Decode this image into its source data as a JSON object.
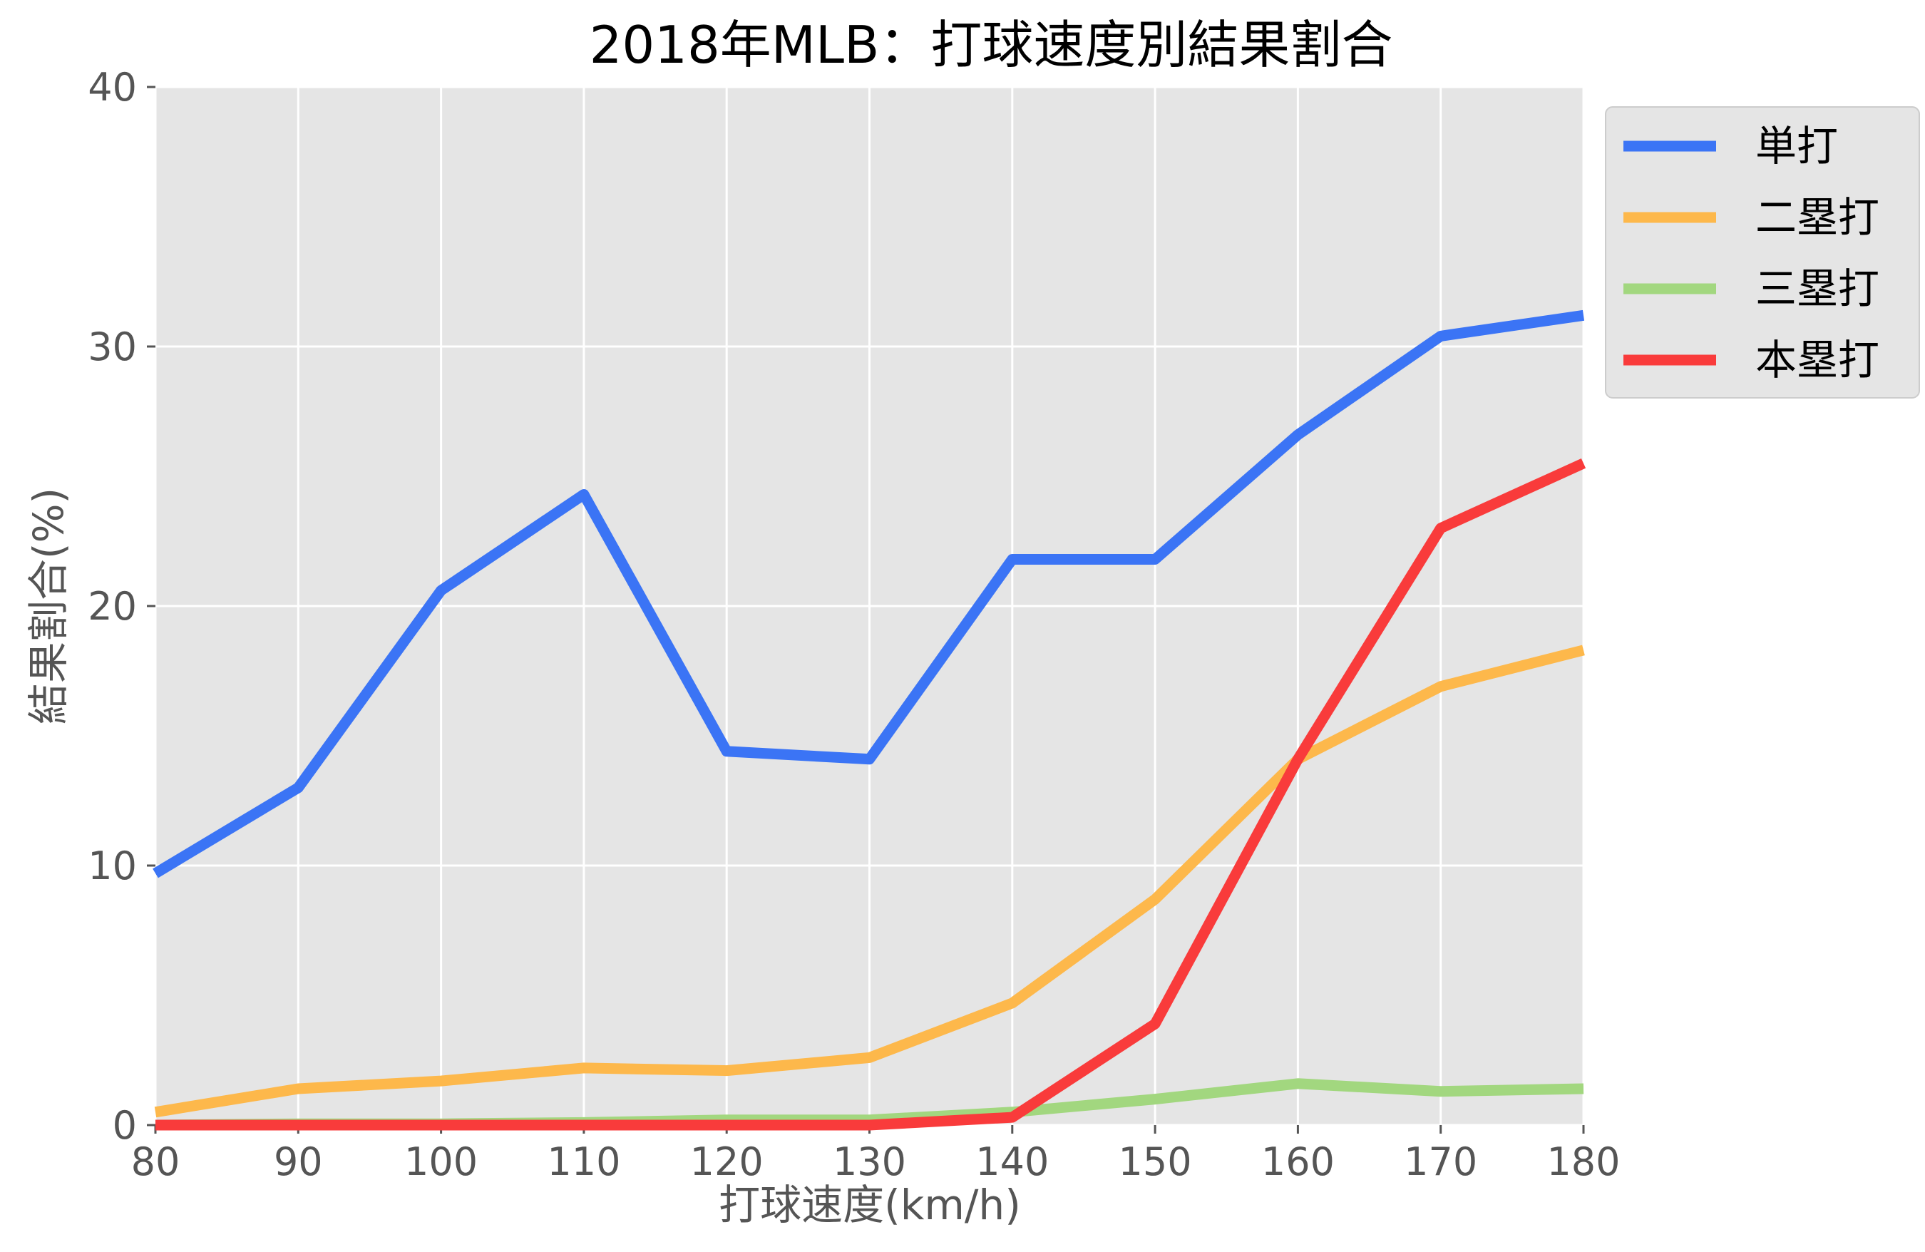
{
  "chart_data": {
    "type": "line",
    "title": "2018年MLB：打球速度別結果割合",
    "xlabel": "打球速度(km/h)",
    "ylabel": "結果割合(%)",
    "x": [
      80,
      90,
      100,
      110,
      120,
      130,
      140,
      150,
      160,
      170,
      180
    ],
    "xlim": [
      80,
      180
    ],
    "ylim": [
      0,
      40
    ],
    "xticks": [
      "80",
      "90",
      "100",
      "110",
      "120",
      "130",
      "140",
      "150",
      "160",
      "170",
      "180"
    ],
    "yticks": [
      "0",
      "10",
      "20",
      "30",
      "40"
    ],
    "grid": true,
    "legend_position": "outside-top-right",
    "background_color": "#e5e5e5",
    "series": [
      {
        "name": "単打",
        "color": "#3b74f5",
        "values": [
          9.7,
          13.0,
          20.6,
          24.3,
          14.4,
          14.1,
          21.8,
          21.8,
          26.6,
          30.4,
          31.2
        ]
      },
      {
        "name": "二塁打",
        "color": "#fdb84b",
        "values": [
          0.5,
          1.4,
          1.7,
          2.2,
          2.1,
          2.6,
          4.7,
          8.7,
          14.1,
          16.9,
          18.3
        ]
      },
      {
        "name": "三塁打",
        "color": "#a2d77f",
        "values": [
          0.0,
          0.05,
          0.05,
          0.1,
          0.2,
          0.2,
          0.5,
          1.0,
          1.6,
          1.3,
          1.4
        ]
      },
      {
        "name": "本塁打",
        "color": "#f93b3b",
        "values": [
          0.0,
          0.0,
          0.0,
          0.0,
          0.0,
          0.0,
          0.3,
          3.9,
          14.1,
          23.0,
          25.5
        ]
      }
    ]
  }
}
